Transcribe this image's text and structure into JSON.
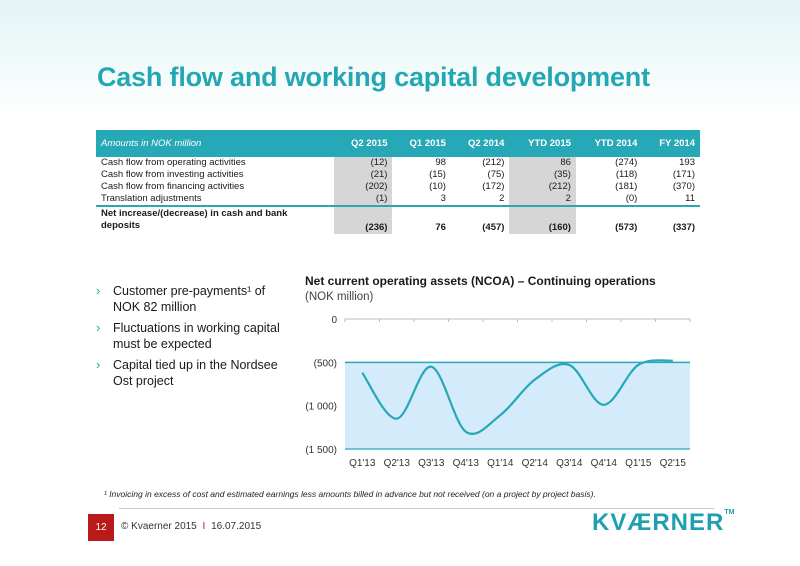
{
  "title": "Cash flow and working capital development",
  "table": {
    "header": [
      "Amounts in NOK million",
      "Q2 2015",
      "Q1 2015",
      "Q2 2014",
      "YTD 2015",
      "YTD 2014",
      "FY 2014"
    ],
    "rows": [
      {
        "label": "Cash flow from operating activities",
        "values": [
          "(12)",
          "98",
          "(212)",
          "86",
          "(274)",
          "193"
        ]
      },
      {
        "label": "Cash flow from investing activities",
        "values": [
          "(21)",
          "(15)",
          "(75)",
          "(35)",
          "(118)",
          "(171)"
        ]
      },
      {
        "label": "Cash flow from financing activities",
        "values": [
          "(202)",
          "(10)",
          "(172)",
          "(212)",
          "(181)",
          "(370)"
        ]
      },
      {
        "label": "Translation adjustments",
        "values": [
          "(1)",
          "3",
          "2",
          "2",
          "(0)",
          "11"
        ]
      }
    ],
    "total": {
      "label": "Net increase/(decrease) in cash and bank deposits",
      "values": [
        "(236)",
        "76",
        "(457)",
        "(160)",
        "(573)",
        "(337)"
      ]
    }
  },
  "bullets": [
    "Customer pre-payments¹ of NOK 82 million",
    "Fluctuations in working capital must be expected",
    "Capital tied up in the Nordsee Ost project"
  ],
  "bullet_marker": "›",
  "chart_data": {
    "type": "area",
    "title": "Net current operating assets (NCOA) – Continuing operations",
    "subtitle": "(NOK million)",
    "categories": [
      "Q1'13",
      "Q2'13",
      "Q3'13",
      "Q4'13",
      "Q1'14",
      "Q2'14",
      "Q3'14",
      "Q4'14",
      "Q1'15",
      "Q2'15"
    ],
    "y_tick_labels": [
      "0",
      "(500)",
      "(1 000)",
      "(1 500)"
    ],
    "y_ticks": [
      0,
      -500,
      -1000,
      -1500
    ],
    "ylim": [
      -1500,
      0
    ],
    "reference_line": -500,
    "series": [
      {
        "values": [
          -620,
          -1150,
          -550,
          -1300,
          -1110,
          -700,
          -530,
          -990,
          -530,
          -480
        ]
      }
    ],
    "colors": {
      "line": "#27a8b6",
      "area": "#d3ebfa",
      "reference": "#27a8b6"
    },
    "grid": false
  },
  "footnote": "¹ Invoicing in excess of cost and estimated earnings less amounts billed in advance but not received (on a project by project basis).",
  "footer": {
    "page_number": "12",
    "copyright": "© Kvaerner 2015",
    "separator": "I",
    "date": "16.07.2015",
    "logo_text": "KVÆRNER",
    "logo_tm": "TM"
  },
  "colors": {
    "accent": "#22a7b3",
    "table_header": "#27a8b6",
    "shaded_cell": "#d6d6d6",
    "page_box": "#b81a1a"
  }
}
